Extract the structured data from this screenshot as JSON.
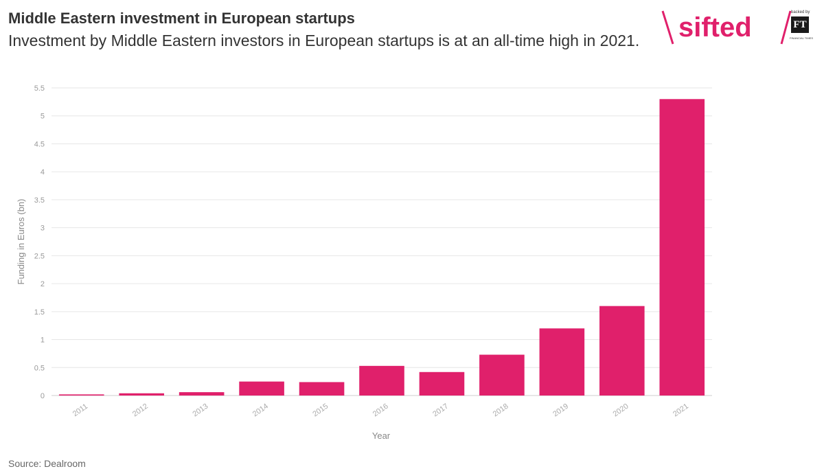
{
  "header": {
    "title": "Middle Eastern investment in European startups",
    "subtitle": "Investment by Middle Eastern investors in European startups is at an all-time high in 2021."
  },
  "brand": {
    "name": "sifted",
    "backed_by": "backed by",
    "ft_mark": "FT",
    "ft_caption": "FINANCIAL TIMES",
    "color": "#e0206b"
  },
  "footer": {
    "source": "Source: Dealroom"
  },
  "chart_data": {
    "type": "bar",
    "xlabel": "Year",
    "ylabel": "Funding in Euros (bn)",
    "categories": [
      "2011",
      "2012",
      "2013",
      "2014",
      "2015",
      "2016",
      "2017",
      "2018",
      "2019",
      "2020",
      "2021"
    ],
    "values": [
      0.02,
      0.04,
      0.06,
      0.25,
      0.24,
      0.53,
      0.42,
      0.73,
      1.2,
      1.6,
      5.3
    ],
    "ylim": [
      0,
      5.5
    ],
    "yticks": [
      0,
      0.5,
      1,
      1.5,
      2,
      2.5,
      3,
      3.5,
      4,
      4.5,
      5,
      5.5
    ],
    "bar_color": "#e0206b",
    "grid": true,
    "legend": "none"
  }
}
